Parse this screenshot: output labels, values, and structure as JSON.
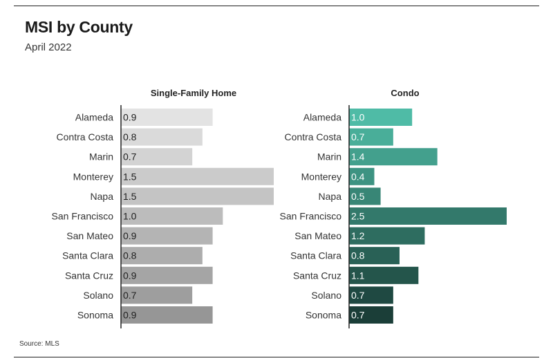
{
  "header": {
    "title": "MSI by County",
    "subtitle": "April 2022"
  },
  "footer": {
    "source": "Source: MLS"
  },
  "chart_data": [
    {
      "type": "bar",
      "orientation": "horizontal",
      "title": "Single-Family Home",
      "categories": [
        "Alameda",
        "Contra Costa",
        "Marin",
        "Monterey",
        "Napa",
        "San Francisco",
        "San Mateo",
        "Santa Clara",
        "Santa Cruz",
        "Solano",
        "Sonoma"
      ],
      "values": [
        0.9,
        0.8,
        0.7,
        1.5,
        1.5,
        1.0,
        0.9,
        0.8,
        0.9,
        0.7,
        0.9
      ],
      "colors": [
        "#e3e3e3",
        "#dadada",
        "#d3d3d3",
        "#cbcbcb",
        "#c4c4c4",
        "#bcbcbc",
        "#b4b4b4",
        "#adadad",
        "#a5a5a5",
        "#9e9e9e",
        "#969696"
      ],
      "label_color": "#222222",
      "xlim": [
        0,
        1.5
      ]
    },
    {
      "type": "bar",
      "orientation": "horizontal",
      "title": "Condo",
      "categories": [
        "Alameda",
        "Contra Costa",
        "Marin",
        "Monterey",
        "Napa",
        "San Francisco",
        "San Mateo",
        "Santa Clara",
        "Santa Cruz",
        "Solano",
        "Sonoma"
      ],
      "values": [
        1.0,
        0.7,
        1.4,
        0.4,
        0.5,
        2.5,
        1.2,
        0.8,
        1.1,
        0.7,
        0.7
      ],
      "colors": [
        "#4fbba6",
        "#49ae99",
        "#43a08d",
        "#3d9382",
        "#388676",
        "#33796b",
        "#2e6d60",
        "#296156",
        "#24554b",
        "#1f4942",
        "#1b3e38"
      ],
      "label_color": "#ffffff",
      "xlim": [
        0,
        2.5
      ]
    }
  ]
}
